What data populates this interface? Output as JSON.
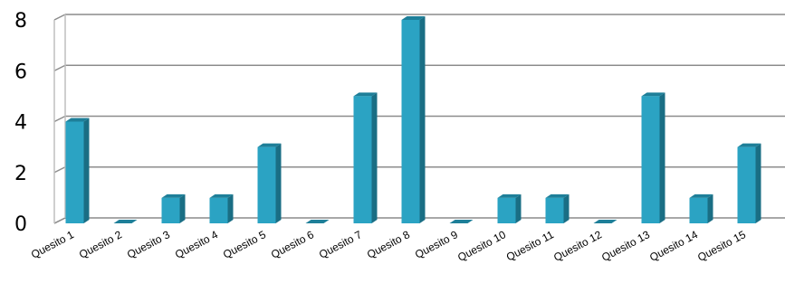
{
  "chart_data": {
    "type": "bar",
    "categories": [
      "Quesito 1",
      "Quesito 2",
      "Quesito 3",
      "Quesito 4",
      "Quesito 5",
      "Quesito 6",
      "Quesito 7",
      "Quesito 8",
      "Quesito 9",
      "Quesito 10",
      "Quesito 11",
      "Quesito 12",
      "Quesito 13",
      "Quesito 14",
      "Quesito 15"
    ],
    "values": [
      4,
      0,
      1,
      1,
      3,
      0,
      5,
      8,
      0,
      1,
      1,
      0,
      5,
      1,
      3
    ],
    "title": "",
    "xlabel": "",
    "ylabel": "",
    "ylim": [
      0,
      8
    ],
    "yticks": [
      "0",
      "2",
      "4",
      "6",
      "8"
    ],
    "grid": true,
    "legend": "none",
    "colors": {
      "bar_front": "#2BA3C3",
      "bar_side": "#1A6E84",
      "bar_top": "#1E7F99",
      "gridline": "#8C8C8C",
      "wall": "#BFBFBF"
    }
  }
}
